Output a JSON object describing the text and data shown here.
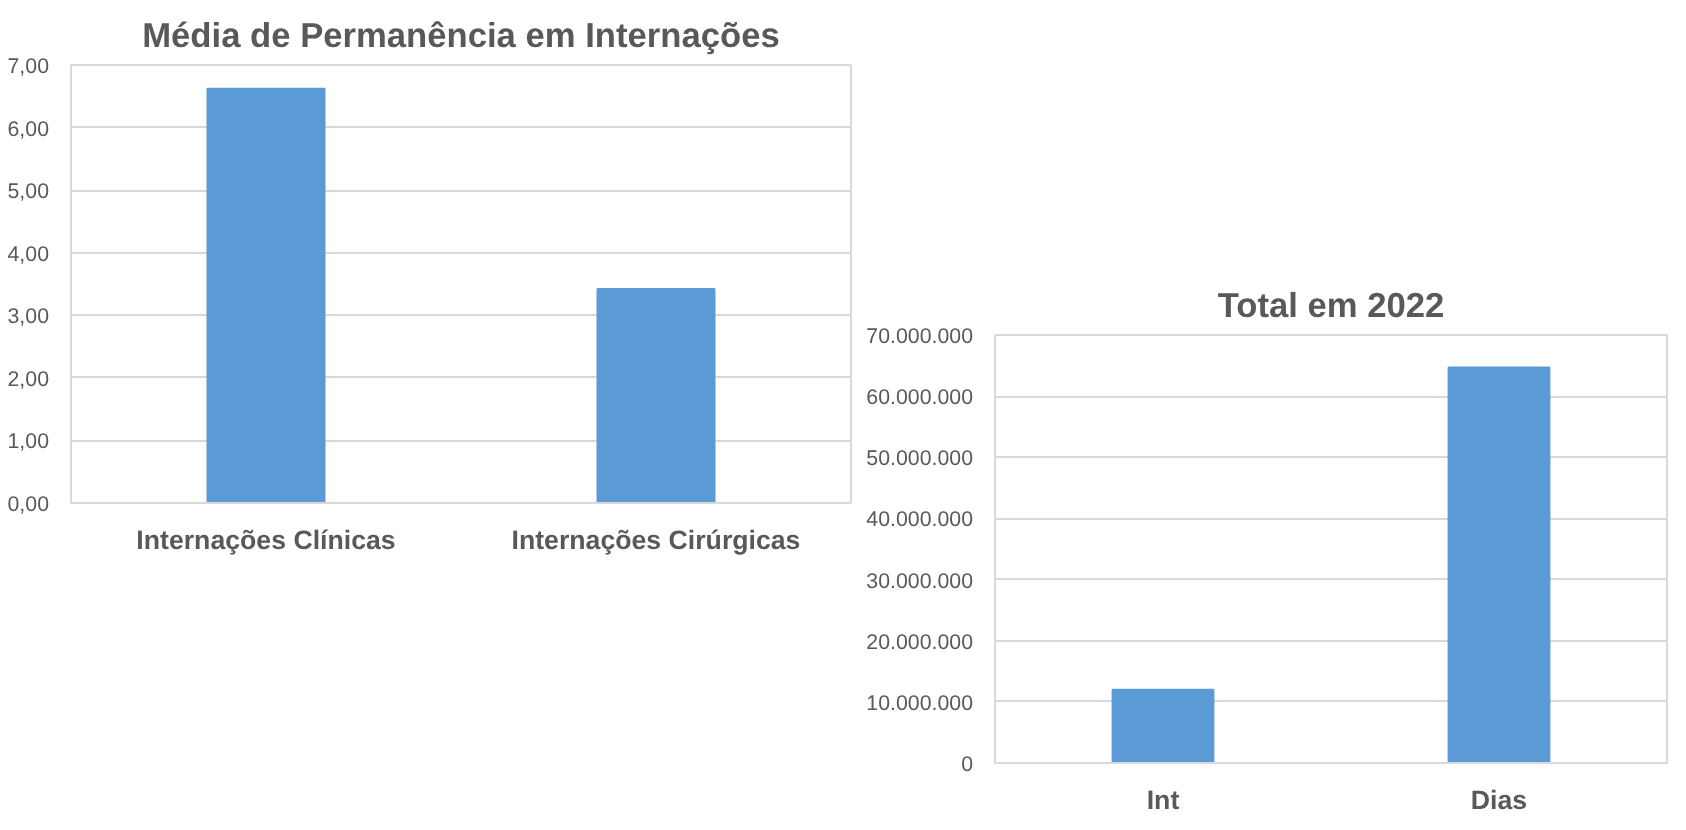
{
  "chart_data": [
    {
      "type": "bar",
      "title": "Média de Permanência em Internações",
      "categories": [
        "Internações Clínicas",
        "Internações Cirúrgicas"
      ],
      "values": [
        6.62,
        3.42
      ],
      "color": "#5b9bd5",
      "ylim": [
        0,
        7
      ],
      "yticks": [
        {
          "value": 0,
          "label": "0,00"
        },
        {
          "value": 1,
          "label": "1,00"
        },
        {
          "value": 2,
          "label": "2,00"
        },
        {
          "value": 3,
          "label": "3,00"
        },
        {
          "value": 4,
          "label": "4,00"
        },
        {
          "value": 5,
          "label": "5,00"
        },
        {
          "value": 6,
          "label": "6,00"
        },
        {
          "value": 7,
          "label": "7,00"
        }
      ],
      "grid": "y"
    },
    {
      "type": "bar",
      "title": "Total em 2022",
      "categories": [
        "Int",
        "Dias"
      ],
      "values": [
        12000000,
        64700000
      ],
      "color": "#5b9bd5",
      "ylim": [
        0,
        70000000
      ],
      "yticks": [
        0,
        {
          "value": 10000000,
          "label": "10.000.000"
        },
        {
          "value": 20000000,
          "label": "20.000.000"
        },
        {
          "value": 30000000,
          "label": "30.000.000"
        },
        {
          "value": 40000000,
          "label": "40.000.000"
        },
        {
          "value": 50000000,
          "label": "50.000.000"
        },
        {
          "value": 60000000,
          "label": "60.000.000"
        },
        {
          "value": 70000000,
          "label": "70.000.000"
        }
      ],
      "grid": "y"
    }
  ]
}
